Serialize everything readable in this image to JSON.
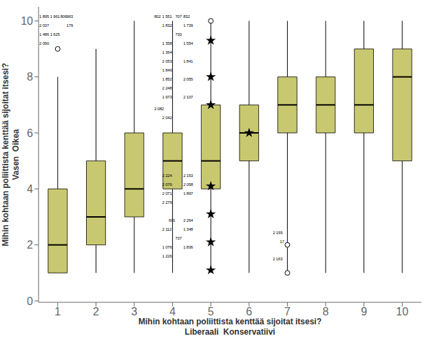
{
  "chart_data": {
    "type": "box",
    "xlabel": "Mihin kohtaan poliittista kenttää sijoitat itsesi?\nLiberaali  Konservatiivi",
    "ylabel": "Mihin kohtaan poliittista kenttää sijoitat itsesi?\nVasen  Oikea",
    "x": [
      1,
      2,
      3,
      4,
      5,
      6,
      7,
      8,
      9,
      10
    ],
    "q1": [
      1.0,
      2.0,
      3.0,
      4.0,
      4.0,
      5.0,
      6.0,
      6.0,
      6.0,
      5.0
    ],
    "median": [
      2.0,
      3.0,
      4.0,
      5.0,
      5.0,
      6.0,
      7.0,
      7.0,
      7.0,
      8.0
    ],
    "q3": [
      4.0,
      5.0,
      6.0,
      6.0,
      7.0,
      7.0,
      8.0,
      8.0,
      9.0,
      9.0
    ],
    "whisker_low": [
      1.0,
      1.0,
      1.0,
      1.0,
      1.0,
      1.0,
      1.0,
      1.0,
      1.0,
      1.0
    ],
    "whisker_high": [
      8.0,
      9.0,
      10.0,
      10.0,
      10.0,
      10.0,
      10.0,
      10.0,
      10.0,
      10.0
    ],
    "color": "#c8c870",
    "outliers": [
      {
        "marker": "circle",
        "points": [
          [
            1,
            9.0
          ],
          [
            5,
            10.0
          ],
          [
            7,
            2.0
          ],
          [
            7,
            1.0
          ]
        ]
      },
      {
        "marker": "star",
        "points": [
          [
            5,
            9.3
          ],
          [
            5,
            8.0
          ],
          [
            5,
            7.0
          ],
          [
            5,
            4.1
          ],
          [
            5,
            3.1
          ],
          [
            5,
            2.1
          ],
          [
            5,
            1.1
          ],
          [
            6,
            6.0
          ]
        ]
      }
    ],
    "xlim": [
      0.5,
      10.5
    ],
    "ylim": [
      -0.05,
      10.5
    ],
    "xticks": [
      1,
      2,
      3,
      4,
      5,
      6,
      7,
      8,
      9,
      10
    ],
    "yticks": [
      0,
      2,
      4,
      6,
      8,
      10
    ],
    "grid": false,
    "annotations": [
      {
        "text": "1 895",
        "x": 0.52,
        "y": 10.1
      },
      {
        "text": "1 961",
        "x": 0.8,
        "y": 10.1
      },
      {
        "text": "806",
        "x": 1.07,
        "y": 10.1
      },
      {
        "text": "963",
        "x": 1.23,
        "y": 10.1
      },
      {
        "text": "2 037",
        "x": 0.52,
        "y": 9.78
      },
      {
        "text": "179",
        "x": 1.23,
        "y": 9.78
      },
      {
        "text": "1 486",
        "x": 0.52,
        "y": 9.46
      },
      {
        "text": "1 625",
        "x": 0.8,
        "y": 9.46
      },
      {
        "text": "2 050",
        "x": 0.52,
        "y": 9.14
      },
      {
        "text": "802",
        "x": 3.52,
        "y": 10.1
      },
      {
        "text": "1 551",
        "x": 3.73,
        "y": 10.1
      },
      {
        "text": "707",
        "x": 4.07,
        "y": 10.1
      },
      {
        "text": "832",
        "x": 4.28,
        "y": 10.1
      },
      {
        "text": "1 832",
        "x": 3.73,
        "y": 9.78
      },
      {
        "text": "1 739",
        "x": 4.28,
        "y": 9.78
      },
      {
        "text": "730",
        "x": 4.07,
        "y": 9.46
      },
      {
        "text": "1 358",
        "x": 3.73,
        "y": 9.14
      },
      {
        "text": "1 554",
        "x": 4.28,
        "y": 9.14
      },
      {
        "text": "1 364",
        "x": 3.73,
        "y": 8.82
      },
      {
        "text": "2 053",
        "x": 3.73,
        "y": 8.5
      },
      {
        "text": "1 841",
        "x": 4.28,
        "y": 8.5
      },
      {
        "text": "1 849",
        "x": 3.73,
        "y": 8.18
      },
      {
        "text": "1 852",
        "x": 3.73,
        "y": 7.86
      },
      {
        "text": "2 055",
        "x": 4.28,
        "y": 7.86
      },
      {
        "text": "2 248",
        "x": 3.73,
        "y": 7.54
      },
      {
        "text": "1 973",
        "x": 3.73,
        "y": 7.22
      },
      {
        "text": "2 107",
        "x": 4.28,
        "y": 7.22
      },
      {
        "text": "2 082",
        "x": 3.52,
        "y": 6.82
      },
      {
        "text": "2 042",
        "x": 3.73,
        "y": 6.5
      },
      {
        "text": "2 224",
        "x": 3.73,
        "y": 4.42
      },
      {
        "text": "2 153",
        "x": 4.28,
        "y": 4.42
      },
      {
        "text": "2 079",
        "x": 3.73,
        "y": 4.1
      },
      {
        "text": "2 058",
        "x": 4.28,
        "y": 4.1
      },
      {
        "text": "2 071",
        "x": 3.73,
        "y": 3.78
      },
      {
        "text": "1 897",
        "x": 4.28,
        "y": 3.78
      },
      {
        "text": "2 279",
        "x": 3.73,
        "y": 3.46
      },
      {
        "text": "601",
        "x": 3.9,
        "y": 2.82
      },
      {
        "text": "2 264",
        "x": 4.28,
        "y": 2.82
      },
      {
        "text": "2 112",
        "x": 3.73,
        "y": 2.5
      },
      {
        "text": "1 348",
        "x": 4.28,
        "y": 2.5
      },
      {
        "text": "737",
        "x": 4.07,
        "y": 2.18
      },
      {
        "text": "1 076",
        "x": 3.73,
        "y": 1.86
      },
      {
        "text": "1 836",
        "x": 4.28,
        "y": 1.86
      },
      {
        "text": "1 226",
        "x": 3.73,
        "y": 1.54
      },
      {
        "text": "2 155",
        "x": 6.62,
        "y": 2.38
      },
      {
        "text": "17",
        "x": 6.8,
        "y": 2.06
      },
      {
        "text": "2 163",
        "x": 6.62,
        "y": 1.46
      }
    ]
  }
}
